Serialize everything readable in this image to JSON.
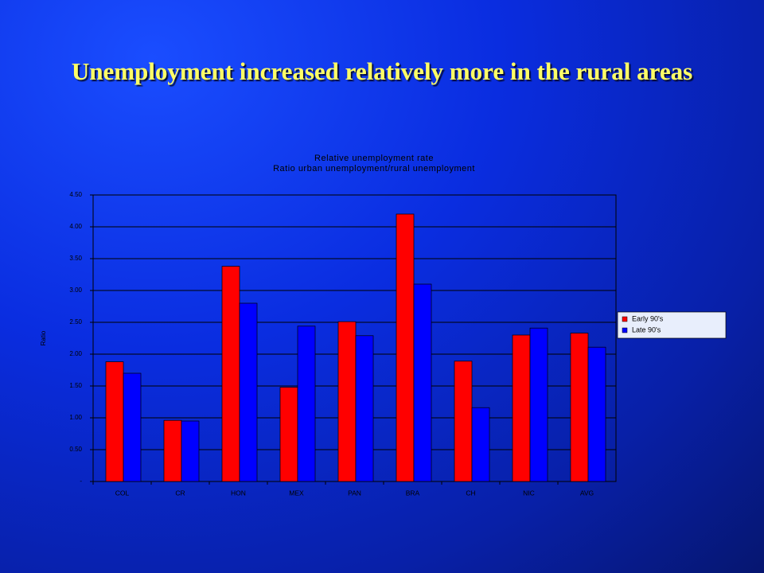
{
  "heading": "Unemployment increased relatively more in the rural areas",
  "chart_data": {
    "type": "bar",
    "title": "Relative unemployment rate",
    "subtitle": "Ratio urban unemployment/rural unemployment",
    "y_label": "Ratio",
    "categories": [
      "COL",
      "CR",
      "HON",
      "MEX",
      "PAN",
      "BRA",
      "CH",
      "NIC",
      "AVG"
    ],
    "series": [
      {
        "name": "Early 90's",
        "color": "#ff0000",
        "values": [
          1.88,
          0.96,
          3.38,
          1.48,
          2.51,
          4.2,
          1.89,
          2.3,
          2.33
        ]
      },
      {
        "name": "Late 90's",
        "color": "#0000ff",
        "values": [
          1.7,
          0.95,
          2.8,
          2.44,
          2.29,
          3.1,
          1.16,
          2.41,
          2.11
        ]
      }
    ],
    "ylim": [
      0,
      4.5
    ],
    "yticks": [
      {
        "value": 0,
        "label": "-"
      },
      {
        "value": 0.5,
        "label": "0.50"
      },
      {
        "value": 1,
        "label": "1.00"
      },
      {
        "value": 1.5,
        "label": "1.50"
      },
      {
        "value": 2,
        "label": "2.00"
      },
      {
        "value": 2.5,
        "label": "2.50"
      },
      {
        "value": 3,
        "label": "3.00"
      },
      {
        "value": 3.5,
        "label": "3.50"
      },
      {
        "value": 4,
        "label": "4.00"
      },
      {
        "value": 4.5,
        "label": "4.50"
      }
    ],
    "grid": true,
    "legend": "right"
  }
}
